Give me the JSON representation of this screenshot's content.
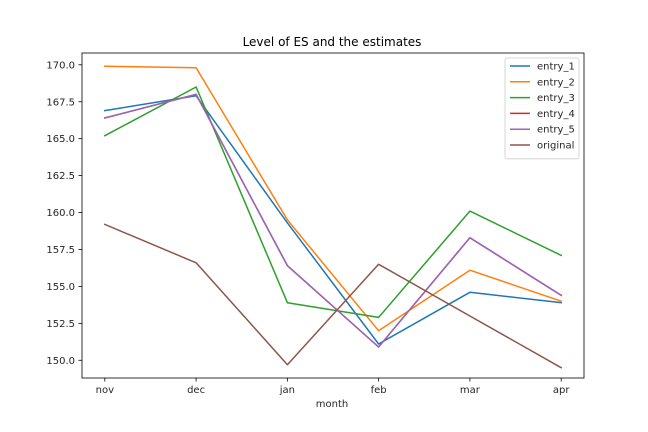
{
  "chart_data": {
    "type": "line",
    "title": "Level of ES and the estimates",
    "xlabel": "month",
    "ylabel": "",
    "categories": [
      "nov",
      "dec",
      "jan",
      "feb",
      "mar",
      "apr"
    ],
    "ylim": [
      148.8,
      170.8
    ],
    "yticks": [
      150.0,
      152.5,
      155.0,
      157.5,
      160.0,
      162.5,
      165.0,
      167.5,
      170.0
    ],
    "ytick_labels": [
      "150.0",
      "152.5",
      "155.0",
      "157.5",
      "160.0",
      "162.5",
      "165.0",
      "167.5",
      "170.0"
    ],
    "grid": false,
    "legend_position": "top-right",
    "series": [
      {
        "name": "entry_1",
        "color": "#1f77b4",
        "values": [
          166.9,
          167.9,
          159.3,
          151.1,
          154.6,
          153.9
        ]
      },
      {
        "name": "entry_2",
        "color": "#ff7f0e",
        "values": [
          169.9,
          169.8,
          159.5,
          152.0,
          156.1,
          154.0
        ]
      },
      {
        "name": "entry_3",
        "color": "#2ca02c",
        "values": [
          165.2,
          168.5,
          153.9,
          152.9,
          160.1,
          157.1
        ]
      },
      {
        "name": "entry_4",
        "color": "#d62728",
        "values": [
          166.4,
          168.0,
          156.4,
          150.9,
          158.3,
          154.4
        ]
      },
      {
        "name": "entry_5",
        "color": "#9467bd",
        "values": [
          166.4,
          168.0,
          156.4,
          150.9,
          158.3,
          154.4
        ]
      },
      {
        "name": "original",
        "color": "#8c564b",
        "values": [
          159.2,
          156.6,
          149.7,
          156.5,
          153.0,
          149.5
        ]
      }
    ]
  }
}
